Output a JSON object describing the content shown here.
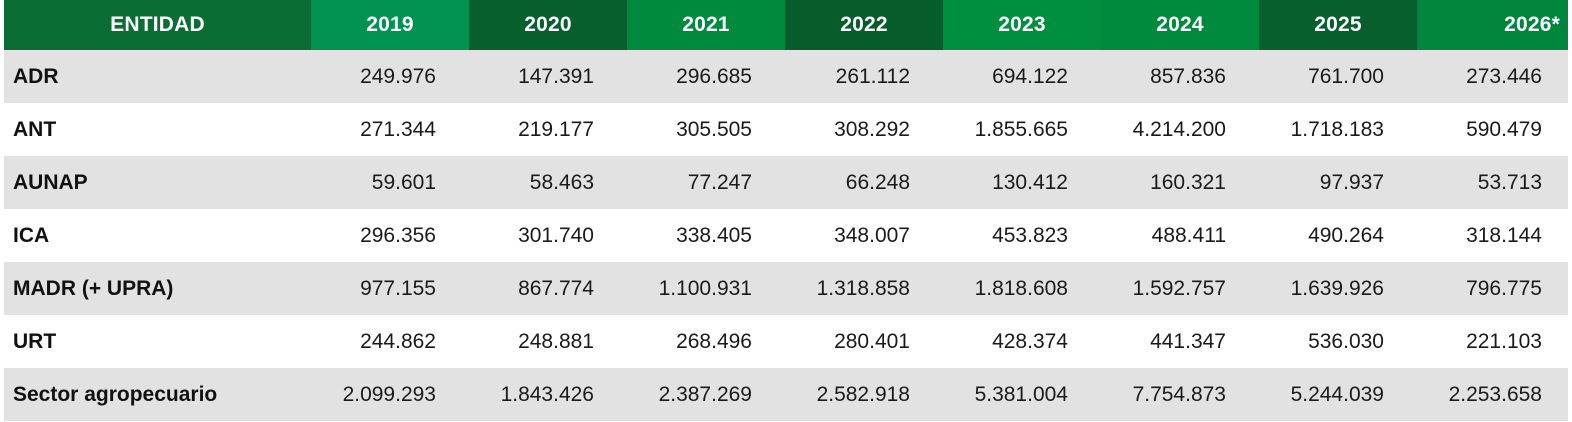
{
  "table": {
    "headers": [
      "ENTIDAD",
      "2019",
      "2020",
      "2021",
      "2022",
      "2023",
      "2024",
      "2025",
      "2026*"
    ],
    "rows": [
      {
        "entity": "ADR",
        "values": [
          "249.976",
          "147.391",
          "296.685",
          "261.112",
          "694.122",
          "857.836",
          "761.700",
          "273.446"
        ]
      },
      {
        "entity": "ANT",
        "values": [
          "271.344",
          "219.177",
          "305.505",
          "308.292",
          "1.855.665",
          "4.214.200",
          "1.718.183",
          "590.479"
        ]
      },
      {
        "entity": "AUNAP",
        "values": [
          "59.601",
          "58.463",
          "77.247",
          "66.248",
          "130.412",
          "160.321",
          "97.937",
          "53.713"
        ]
      },
      {
        "entity": "ICA",
        "values": [
          "296.356",
          "301.740",
          "338.405",
          "348.007",
          "453.823",
          "488.411",
          "490.264",
          "318.144"
        ]
      },
      {
        "entity": "MADR (+ UPRA)",
        "values": [
          "977.155",
          "867.774",
          "1.100.931",
          "1.318.858",
          "1.818.608",
          "1.592.757",
          "1.639.926",
          "796.775"
        ]
      },
      {
        "entity": "URT",
        "values": [
          "244.862",
          "248.881",
          "268.496",
          "280.401",
          "428.374",
          "441.347",
          "536.030",
          "221.103"
        ]
      },
      {
        "entity": "Sector agropecuario",
        "values": [
          "2.099.293",
          "1.843.426",
          "2.387.269",
          "2.582.918",
          "5.381.004",
          "7.754.873",
          "5.244.039",
          "2.253.658"
        ]
      }
    ]
  },
  "colors": {
    "header_dark": "#075f2d",
    "header_light": "#008a3e",
    "row_shade": "#e2e2e2",
    "row_plain": "#ffffff"
  }
}
